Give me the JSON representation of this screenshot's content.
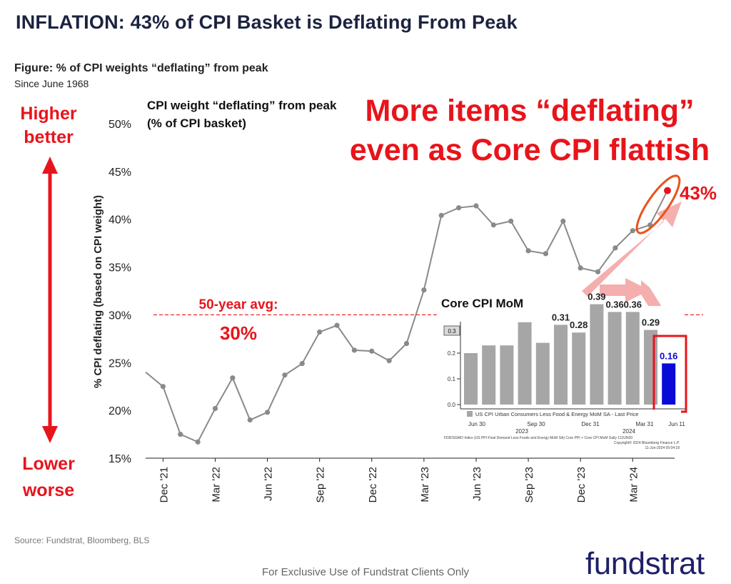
{
  "page": {
    "title": "INFLATION: 43% of CPI Basket is Deflating From Peak",
    "figure_title": "Figure: % of CPI weights “deflating” from peak",
    "figure_subtitle": "Since June 1968",
    "higher_label": [
      "Higher",
      "better"
    ],
    "lower_label": [
      "Lower",
      "worse"
    ],
    "callout": [
      "More items “deflating”",
      "even as Core CPI flattish"
    ],
    "source": "Source: Fundstrat, Bloomberg, BLS",
    "footer": "For Exclusive Use of Fundstrat Clients Only",
    "logo": "fundstrat",
    "colors": {
      "accent_red": "#e8141b",
      "line_gray": "#8a8a8a",
      "title_navy": "#1c2340",
      "logo_navy": "#1f1f6b",
      "arrow_pink": "#f4a6a6"
    }
  },
  "chart_data": [
    {
      "type": "line",
      "title": [
        "CPI weight “deflating” from peak",
        "(% of CPI basket)"
      ],
      "ylabel": "% CPI deflating (based on CPI weight)",
      "ylim": [
        15,
        50
      ],
      "yticks": [
        15,
        20,
        25,
        30,
        35,
        40,
        45,
        50
      ],
      "ytick_labels": [
        "15%",
        "20%",
        "25%",
        "30%",
        "35%",
        "40%",
        "45%",
        "50%"
      ],
      "xtick_labels": [
        "Dec '21",
        "Mar '22",
        "Jun '22",
        "Sep '22",
        "Dec '22",
        "Mar '23",
        "Jun '23",
        "Sep '23",
        "Dec '23",
        "Mar '24"
      ],
      "series": [
        {
          "values": [
            24.0,
            22.5,
            17.5,
            16.7,
            20.2,
            23.4,
            19.0,
            19.8,
            23.7,
            24.9,
            28.2,
            28.9,
            26.3,
            26.2,
            25.2,
            27.0,
            32.6,
            40.4,
            41.2,
            41.4,
            39.4,
            39.8,
            36.7,
            36.4,
            39.8,
            34.9,
            34.5,
            37.0,
            38.8,
            39.4,
            43.0
          ]
        }
      ],
      "reference_line": {
        "value": 30,
        "label": "50-year avg:",
        "value_label": "30%"
      },
      "last_point_label": "43%",
      "grid": false
    },
    {
      "type": "bar",
      "title": "Core CPI MoM",
      "ylim": [
        -0.05,
        0.4
      ],
      "ytick_labels": [
        "0.0",
        "0.1",
        "0.2"
      ],
      "ymarker_label": "0.3",
      "values": [
        0.2,
        0.23,
        0.23,
        0.32,
        0.24,
        0.31,
        0.28,
        0.39,
        0.36,
        0.36,
        0.29,
        0.16
      ],
      "bar_labels": [
        "",
        "",
        "",
        "",
        "",
        "0.31",
        "0.28",
        "0.39",
        "0.36",
        "0.36",
        "0.29",
        "0.16"
      ],
      "xtick_labels": [
        "Jun 30",
        "Sep 30",
        "Dec 31",
        "Mar 31",
        "Jun 11"
      ],
      "year_labels": [
        "2023",
        "2024"
      ],
      "legend": "US CPI Urban Consumers Less Food & Energy MoM SA - Last Price",
      "footnote": [
        "FDIDSGMO Index (US PPI Final Demand Less Foods and Energy MoM SA) Core PPI + Core CPI MoM  Daily 12JUN20",
        "Copyright© 2024 Bloomberg Finance L.P.",
        "11-Jun-2024 05:04:18"
      ],
      "highlight_color": "#0a0ad8",
      "bar_color": "#a6a6a6"
    }
  ]
}
